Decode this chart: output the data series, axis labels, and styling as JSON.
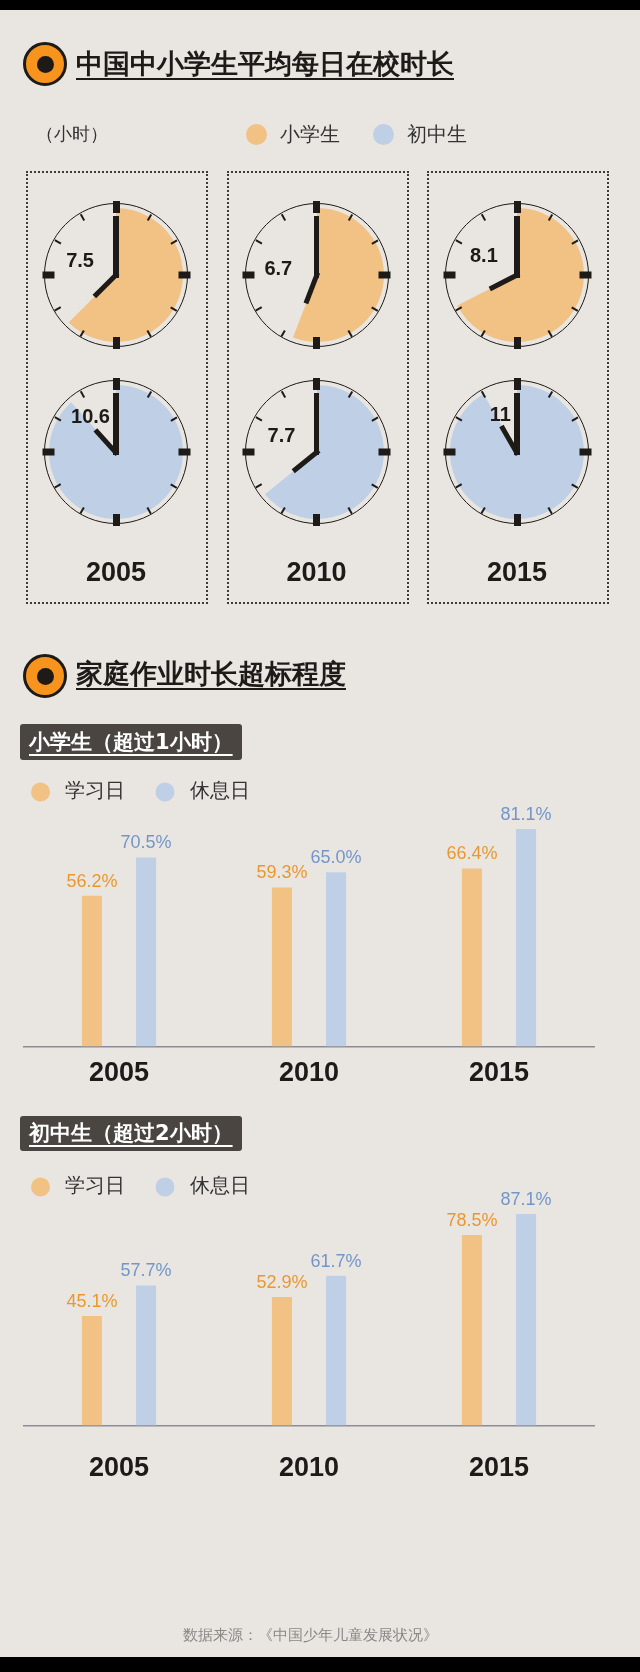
{
  "chart_data": [
    {
      "type": "other",
      "title": "中国中小学生平均每日在校时长",
      "ylabel": "（小时）",
      "categories": [
        "2005",
        "2010",
        "2015"
      ],
      "series": [
        {
          "name": "小学生",
          "color": "#f2c285",
          "values": [
            7.5,
            6.7,
            8.1
          ]
        },
        {
          "name": "初中生",
          "color": "#bfcfe6",
          "values": [
            10.6,
            7.7,
            11
          ]
        }
      ],
      "legend": "top",
      "data_labels": true
    },
    {
      "type": "bar",
      "title": "家庭作业时长超标程度",
      "subtitle": "小学生（超过1小时）",
      "categories": [
        "2005",
        "2010",
        "2015"
      ],
      "series": [
        {
          "name": "学习日",
          "color": "#f2c285",
          "values": [
            56.2,
            59.3,
            66.4
          ],
          "value_labels": [
            "56.2%",
            "59.3%",
            "66.4%"
          ]
        },
        {
          "name": "休息日",
          "color": "#bfcfe6",
          "values": [
            70.5,
            65.0,
            81.1
          ],
          "value_labels": [
            "70.5%",
            "65.0%",
            "81.1%"
          ]
        }
      ],
      "tick_labels": "x",
      "legend": "top left"
    },
    {
      "type": "bar",
      "subtitle": "初中生（超过2小时）",
      "categories": [
        "2005",
        "2010",
        "2015"
      ],
      "series": [
        {
          "name": "学习日",
          "color": "#f2c285",
          "values": [
            45.1,
            52.9,
            78.5
          ],
          "value_labels": [
            "45.1%",
            "52.9%",
            "78.5%"
          ]
        },
        {
          "name": "休息日",
          "color": "#bfcfe6",
          "values": [
            57.7,
            61.7,
            87.1
          ],
          "value_labels": [
            "57.7%",
            "61.7%",
            "87.1%"
          ]
        }
      ],
      "tick_labels": "x",
      "legend": "top left",
      "annotations": [
        "数据来源：《中国少年儿童发展状况》"
      ]
    }
  ]
}
